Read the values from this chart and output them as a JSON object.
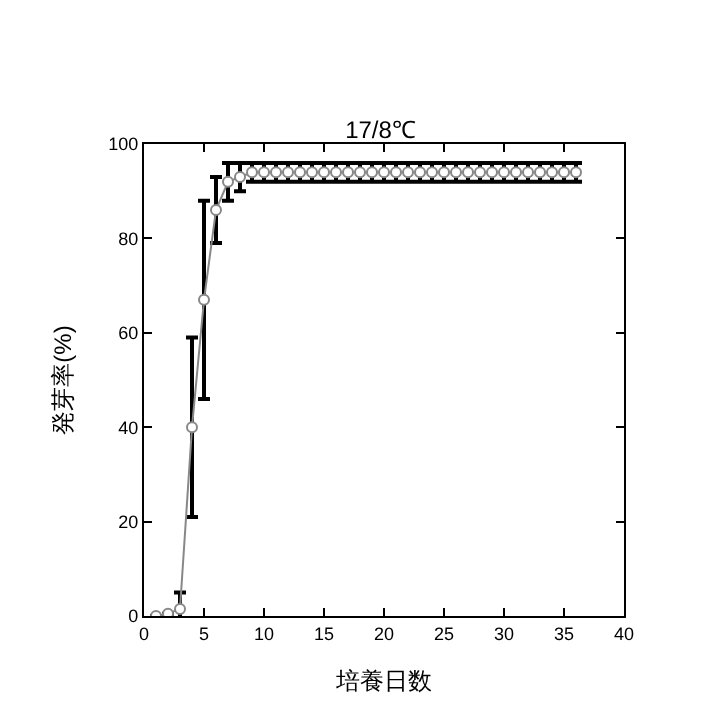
{
  "chart_data": {
    "type": "line",
    "title": "17/8℃",
    "xlabel": "培養日数",
    "ylabel": "発芽率(%)",
    "x": [
      1,
      2,
      3,
      4,
      5,
      6,
      7,
      8,
      9,
      10,
      11,
      12,
      13,
      14,
      15,
      16,
      17,
      18,
      19,
      20,
      21,
      22,
      23,
      24,
      25,
      26,
      27,
      28,
      29,
      30,
      31,
      32,
      33,
      34,
      35,
      36
    ],
    "series": [
      {
        "color": "#888888",
        "values": [
          0,
          0.5,
          1.5,
          40,
          67,
          86,
          92,
          93,
          94,
          94,
          94,
          94,
          94,
          94,
          94,
          94,
          94,
          94,
          94,
          94,
          94,
          94,
          94,
          94,
          94,
          94,
          94,
          94,
          94,
          94,
          94,
          94,
          94,
          94,
          94,
          94
        ],
        "errors": [
          null,
          null,
          3.5,
          19,
          21,
          7,
          4,
          3,
          2,
          2,
          2,
          2,
          2,
          2,
          2,
          2,
          2,
          2,
          2,
          2,
          2,
          2,
          2,
          2,
          2,
          2,
          2,
          2,
          2,
          2,
          2,
          2,
          2,
          2,
          2,
          2
        ]
      }
    ],
    "xlim": [
      0,
      40
    ],
    "xticks": [
      0,
      5,
      10,
      15,
      20,
      25,
      30,
      35,
      40
    ],
    "ylim": [
      0,
      100
    ],
    "yticks": [
      0,
      20,
      40,
      60,
      80,
      100
    ],
    "marker": "circle",
    "line_style": "solid"
  }
}
